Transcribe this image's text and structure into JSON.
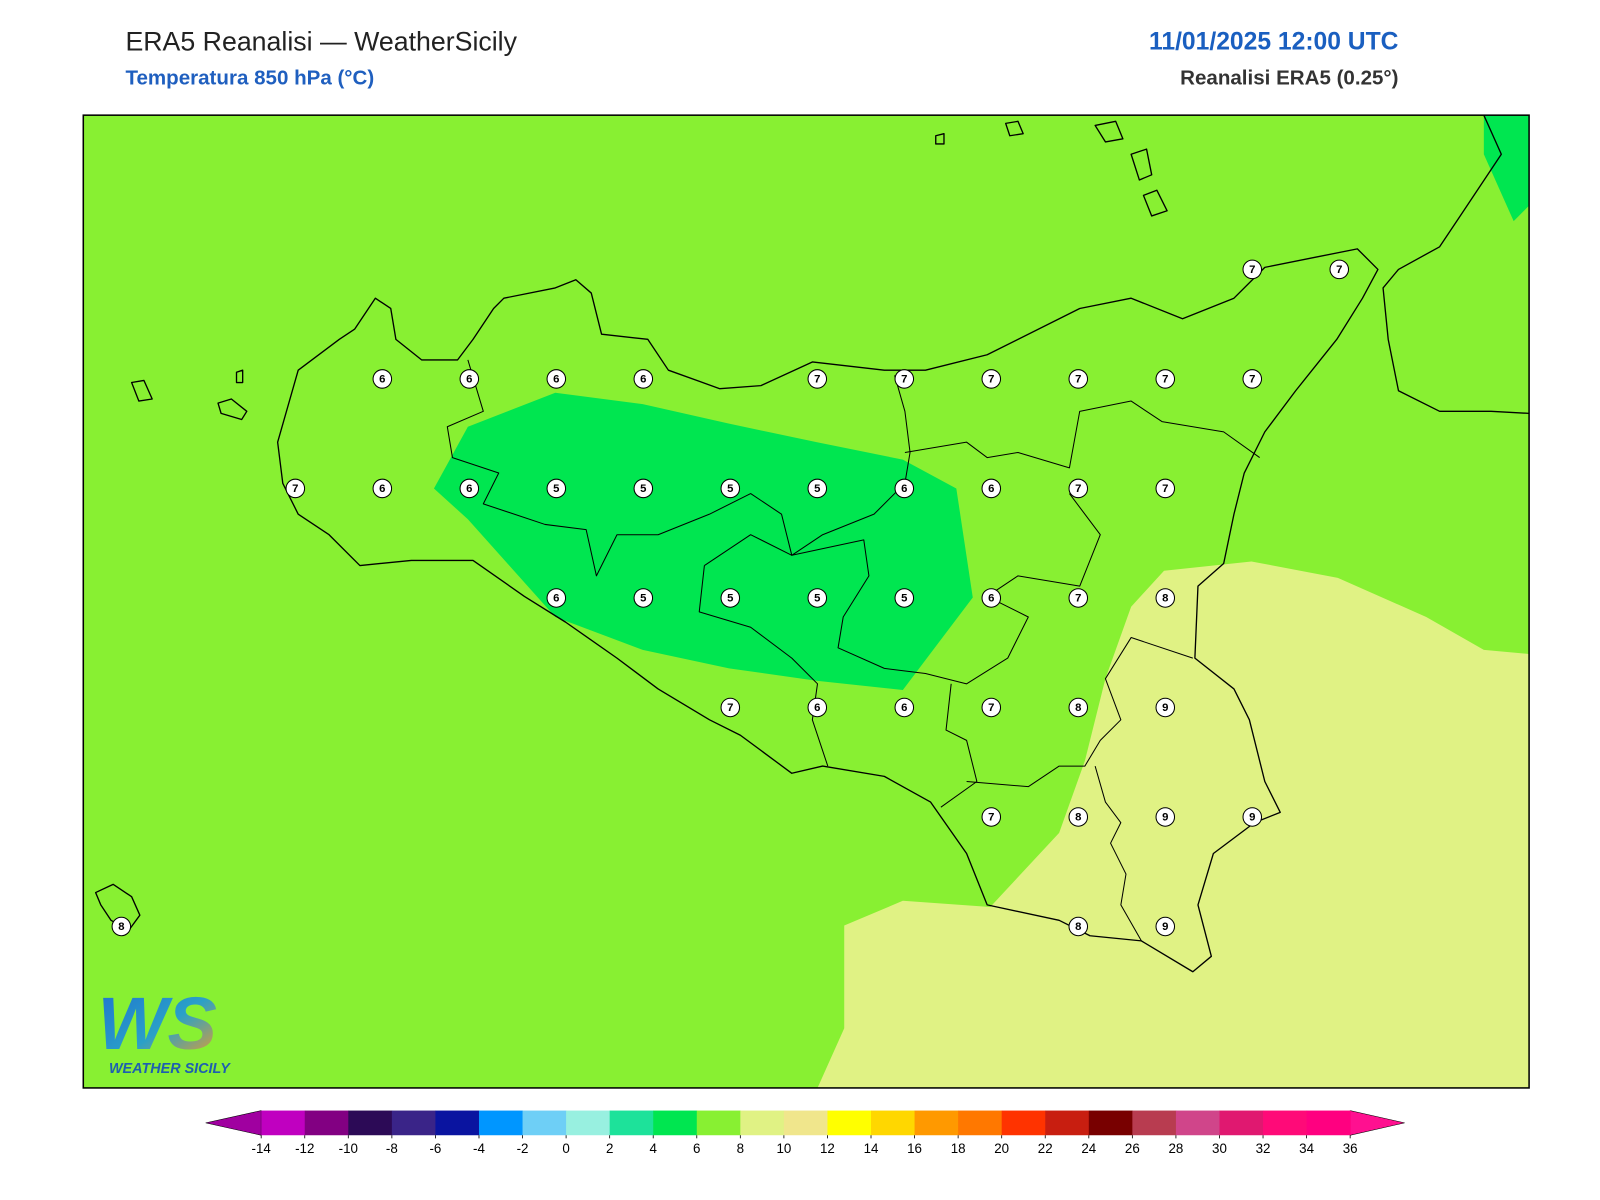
{
  "header": {
    "title": "ERA5 Reanalisi — WeatherSicily",
    "subtitle": "Temperatura 850 hPa (°C)",
    "valid_time": "11/01/2025 12:00 UTC",
    "source": "Reanalisi ERA5 (0.25°)"
  },
  "map": {
    "station_grid": [
      [
        null,
        null,
        null,
        null,
        null,
        null,
        null,
        null,
        null,
        null,
        null,
        null,
        null,
        7,
        7
      ],
      [
        null,
        null,
        null,
        6,
        6,
        6,
        6,
        null,
        7,
        7,
        7,
        7,
        7,
        7,
        null
      ],
      [
        null,
        null,
        7,
        6,
        6,
        5,
        5,
        5,
        5,
        6,
        6,
        7,
        7,
        null,
        null
      ],
      [
        null,
        null,
        null,
        null,
        null,
        6,
        5,
        5,
        5,
        5,
        6,
        7,
        8,
        null,
        null
      ],
      [
        null,
        null,
        null,
        null,
        null,
        null,
        null,
        7,
        6,
        6,
        7,
        8,
        9,
        null,
        null
      ],
      [
        null,
        null,
        null,
        null,
        null,
        null,
        null,
        null,
        null,
        null,
        7,
        8,
        9,
        9,
        null
      ],
      [
        8,
        null,
        null,
        null,
        null,
        null,
        null,
        null,
        null,
        null,
        null,
        8,
        9,
        null,
        null
      ]
    ]
  },
  "colorbar": {
    "levels": [
      -14,
      -12,
      -10,
      -8,
      -6,
      -4,
      -2,
      0,
      2,
      4,
      6,
      8,
      10,
      12,
      14,
      16,
      18,
      20,
      22,
      24,
      26,
      28,
      30,
      32,
      34,
      36
    ],
    "colors": [
      "#c000c0",
      "#820082",
      "#2c0a56",
      "#3a2488",
      "#0a14a0",
      "#0096ff",
      "#6ecff6",
      "#98f0e0",
      "#1de29a",
      "#00e650",
      "#88f032",
      "#e0f284",
      "#f0e68c",
      "#ffff00",
      "#ffd700",
      "#ff9900",
      "#ff7800",
      "#ff3300",
      "#c81e10",
      "#780000",
      "#b83c50",
      "#d0458a",
      "#e01870",
      "#ff0a78",
      "#ff0080"
    ],
    "extend_colors": [
      "#a000a0",
      "#ff1090"
    ]
  },
  "logo": {
    "mark": "WS",
    "text": "WEATHER SICILY"
  }
}
